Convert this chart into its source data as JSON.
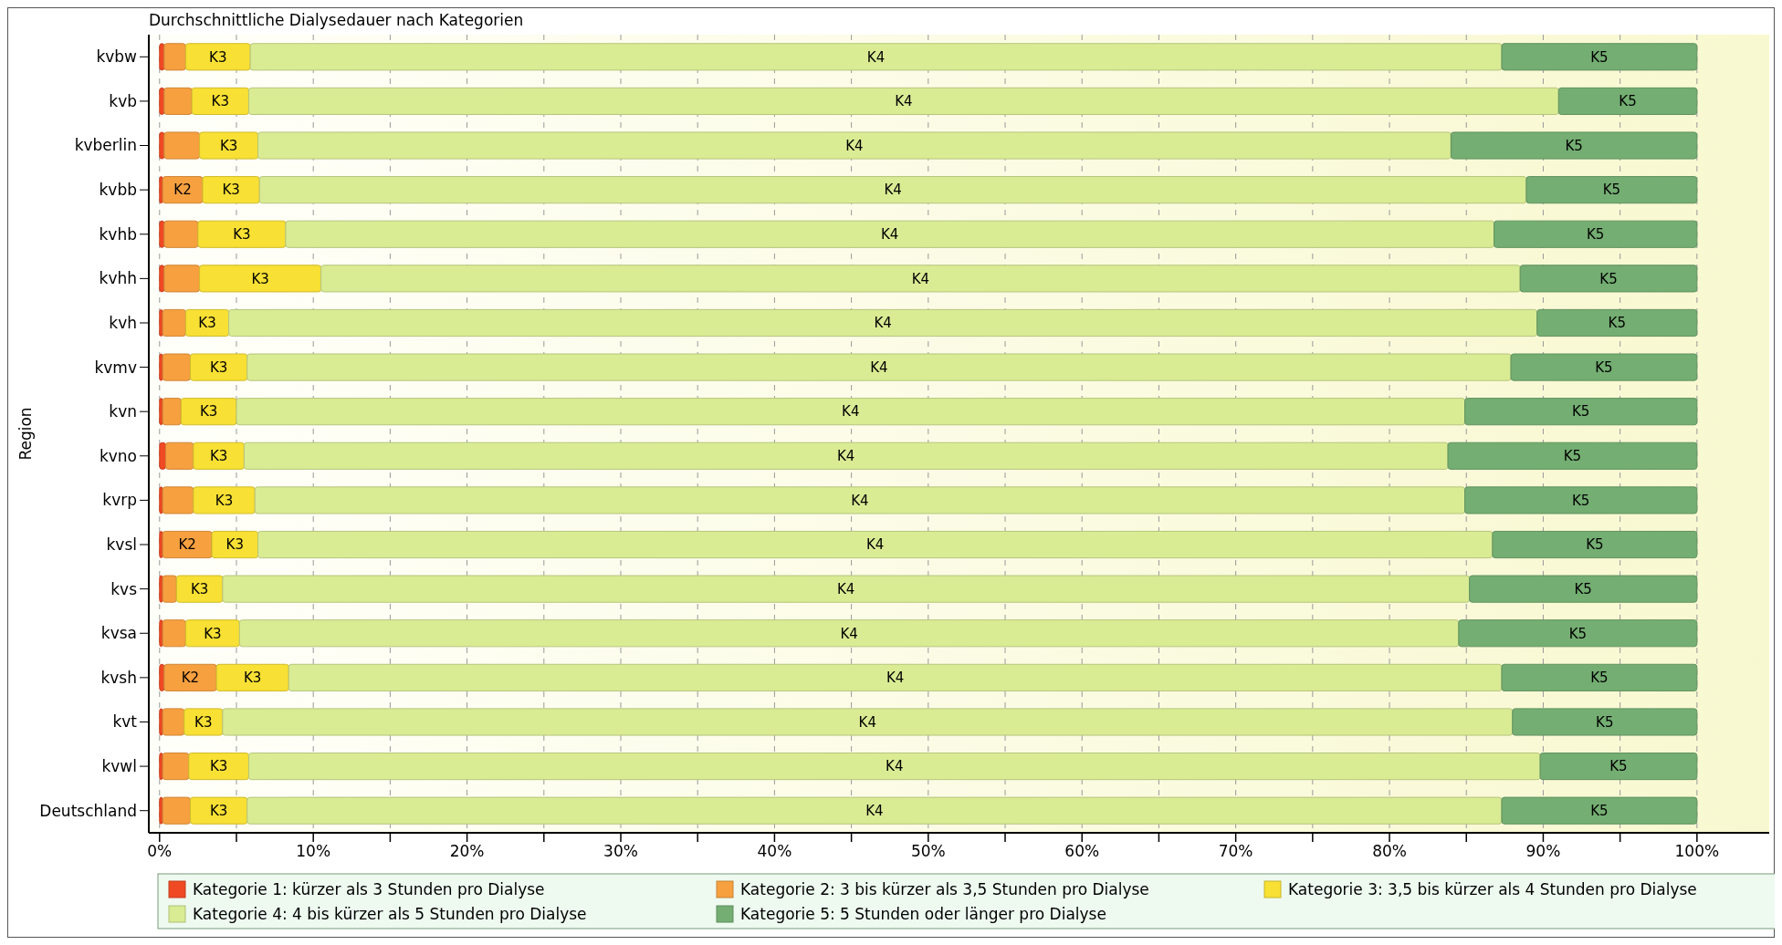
{
  "chart_data": {
    "type": "bar",
    "orientation": "horizontal",
    "stacked": true,
    "title": "Durchschnittliche Dialysedauer nach Kategorien",
    "ylabel": "Region",
    "categories": [
      "kvbw",
      "kvb",
      "kvberlin",
      "kvbb",
      "kvhb",
      "kvhh",
      "kvh",
      "kvmv",
      "kvn",
      "kvno",
      "kvrp",
      "kvsl",
      "kvs",
      "kvsa",
      "kvsh",
      "kvt",
      "kvwl",
      "Deutschland"
    ],
    "series": [
      {
        "name": "Kategorie 1: kürzer als 3 Stunden pro Dialyse",
        "color": "#f04a24",
        "values": [
          0.3,
          0.3,
          0.3,
          0.2,
          0.3,
          0.3,
          0.2,
          0.2,
          0.2,
          0.4,
          0.2,
          0.2,
          0.2,
          0.2,
          0.3,
          0.2,
          0.2,
          0.2
        ]
      },
      {
        "name": "Kategorie 2: 3 bis kürzer als 3,5 Stunden pro Dialyse",
        "color": "#f7a040",
        "values": [
          1.4,
          1.8,
          2.3,
          2.6,
          2.2,
          2.3,
          1.5,
          1.8,
          1.2,
          1.8,
          2.0,
          3.2,
          0.9,
          1.5,
          3.4,
          1.4,
          1.7,
          1.8
        ],
        "value_labels": [
          null,
          null,
          null,
          "K2",
          null,
          null,
          null,
          null,
          null,
          null,
          null,
          "K2",
          null,
          null,
          "K2",
          null,
          null,
          null
        ]
      },
      {
        "name": "Kategorie 3: 3,5 bis kürzer als 4 Stunden pro Dialyse",
        "color": "#f8e034",
        "values": [
          4.2,
          3.7,
          3.8,
          3.7,
          5.7,
          7.9,
          2.8,
          3.7,
          3.6,
          3.3,
          4.0,
          3.0,
          3.0,
          3.5,
          4.7,
          2.5,
          3.9,
          3.7
        ],
        "value_labels": [
          "K3",
          "K3",
          "K3",
          "K3",
          "K3",
          "K3",
          "K3",
          "K3",
          "K3",
          "K3",
          "K3",
          "K3",
          "K3",
          "K3",
          "K3",
          "K3",
          "K3",
          "K3"
        ]
      },
      {
        "name": "Kategorie 4: 4 bis kürzer als 5 Stunden pro Dialyse",
        "color": "#d9ec94",
        "values": [
          81.4,
          85.2,
          77.6,
          82.4,
          78.6,
          78.0,
          85.1,
          82.2,
          79.9,
          78.3,
          78.7,
          80.3,
          81.1,
          79.3,
          78.9,
          83.9,
          84.0,
          81.6
        ],
        "value_labels": [
          "K4",
          "K4",
          "K4",
          "K4",
          "K4",
          "K4",
          "K4",
          "K4",
          "K4",
          "K4",
          "K4",
          "K4",
          "K4",
          "K4",
          "K4",
          "K4",
          "K4",
          "K4"
        ]
      },
      {
        "name": "Kategorie 5: 5 Stunden oder länger pro Dialyse",
        "color": "#74ae72",
        "values": [
          12.7,
          9.0,
          16.0,
          11.1,
          13.2,
          11.5,
          10.4,
          12.1,
          15.1,
          16.2,
          15.1,
          13.3,
          14.8,
          15.5,
          12.7,
          12.0,
          10.2,
          12.7
        ],
        "value_labels": [
          "K5",
          "K5",
          "K5",
          "K5",
          "K5",
          "K5",
          "K5",
          "K5",
          "K5",
          "K5",
          "K5",
          "K5",
          "K5",
          "K5",
          "K5",
          "K5",
          "K5",
          "K5"
        ]
      }
    ],
    "xlim": [
      -0.7,
      104.7
    ],
    "xticks": [
      {
        "value": 0,
        "label": "0%"
      },
      {
        "value": 5,
        "label": null
      },
      {
        "value": 10,
        "label": "10%"
      },
      {
        "value": 15,
        "label": null
      },
      {
        "value": 20,
        "label": "20%"
      },
      {
        "value": 25,
        "label": null
      },
      {
        "value": 30,
        "label": "30%"
      },
      {
        "value": 35,
        "label": null
      },
      {
        "value": 40,
        "label": "40%"
      },
      {
        "value": 45,
        "label": null
      },
      {
        "value": 50,
        "label": "50%"
      },
      {
        "value": 55,
        "label": null
      },
      {
        "value": 60,
        "label": "60%"
      },
      {
        "value": 65,
        "label": null
      },
      {
        "value": 70,
        "label": "70%"
      },
      {
        "value": 75,
        "label": null
      },
      {
        "value": 80,
        "label": "80%"
      },
      {
        "value": 85,
        "label": null
      },
      {
        "value": 90,
        "label": "90%"
      },
      {
        "value": 95,
        "label": null
      },
      {
        "value": 100,
        "label": "100%"
      }
    ],
    "grid": "x",
    "legend": "bottom"
  }
}
